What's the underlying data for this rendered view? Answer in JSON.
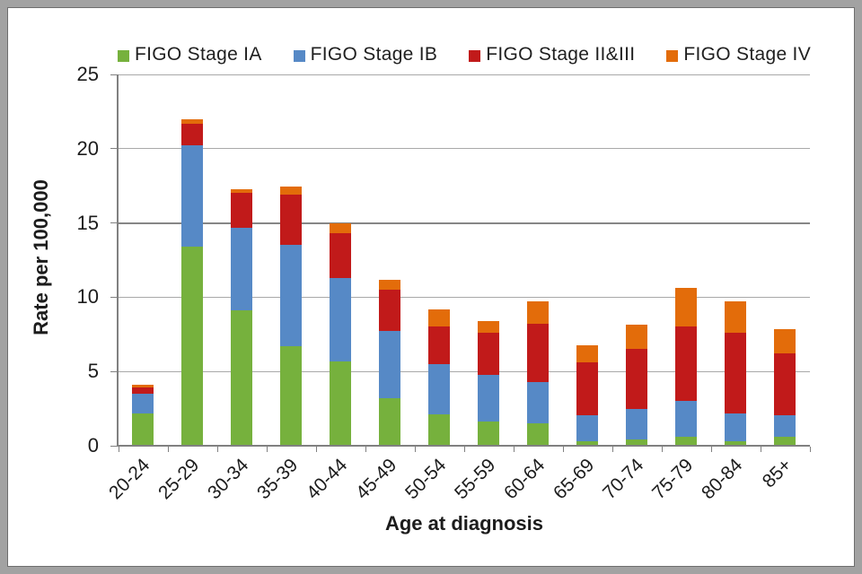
{
  "chart_data": {
    "type": "bar",
    "stacked": true,
    "categories": [
      "20-24",
      "25-29",
      "30-34",
      "35-39",
      "40-44",
      "45-49",
      "50-54",
      "55-59",
      "60-64",
      "65-69",
      "70-74",
      "75-79",
      "80-84",
      "85+"
    ],
    "series": [
      {
        "name": "FIGO Stage IA",
        "color": "#76b13d",
        "values": [
          2.2,
          13.4,
          9.1,
          6.7,
          5.65,
          3.2,
          2.1,
          1.65,
          1.5,
          0.3,
          0.45,
          0.6,
          0.3,
          0.6
        ]
      },
      {
        "name": "FIGO Stage IB",
        "color": "#5689c6",
        "values": [
          1.3,
          6.8,
          5.6,
          6.8,
          5.65,
          4.5,
          3.4,
          3.15,
          2.8,
          1.75,
          2.05,
          2.4,
          1.85,
          1.45
        ]
      },
      {
        "name": "FIGO Stage II&III",
        "color": "#c11a1a",
        "values": [
          0.45,
          1.5,
          2.3,
          3.4,
          3.0,
          2.8,
          2.55,
          2.8,
          3.9,
          3.55,
          4.0,
          5.05,
          5.45,
          4.15
        ]
      },
      {
        "name": "FIGO Stage IV",
        "color": "#e36c0a",
        "values": [
          0.15,
          0.3,
          0.25,
          0.55,
          0.7,
          0.7,
          1.1,
          0.8,
          1.5,
          1.15,
          1.65,
          2.55,
          2.15,
          1.65
        ]
      }
    ],
    "xlabel": "Age at diagnosis",
    "ylabel": "Rate per 100,000",
    "ylim": [
      0,
      25
    ],
    "yticks": [
      0,
      5,
      10,
      15,
      20,
      25
    ],
    "emphasized_gridline": 15,
    "grid": true,
    "legend_position": "top",
    "gridline_color": "#a9a9a9",
    "emphasized_gridline_color": "#868686",
    "axis_color": "#808080",
    "text_color": "#1c1c1c"
  }
}
